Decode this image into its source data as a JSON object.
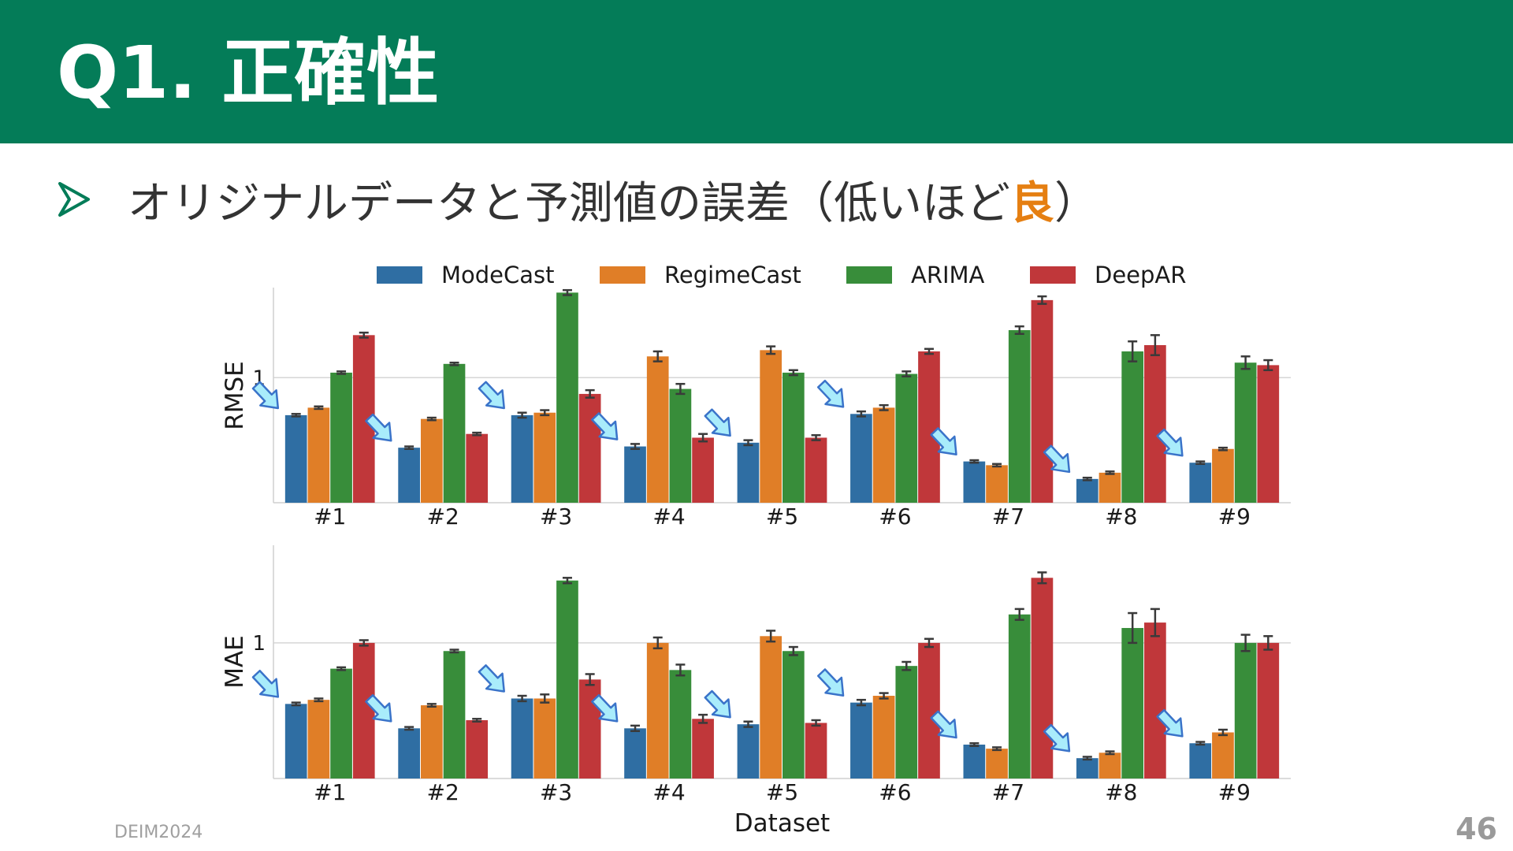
{
  "slide": {
    "title": "Q1. 正確性",
    "bullet_prefix": "オリジナルデータと予測値の誤差",
    "bullet_open": "（低いほど",
    "bullet_emphasis": "良",
    "bullet_close": "）",
    "footer": "DEIM2024",
    "page_number": "46",
    "header_color": "#047c58",
    "emphasis_color": "#e57f12"
  },
  "chart_data": [
    {
      "type": "bar",
      "panel": "top",
      "ylabel": "RMSE",
      "yticks": [
        1
      ],
      "ylim": [
        0,
        1.72
      ],
      "categories": [
        "#1",
        "#2",
        "#3",
        "#4",
        "#5",
        "#6",
        "#7",
        "#8",
        "#9"
      ],
      "xlabel": "",
      "series": [
        {
          "name": "ModeCast",
          "color": "#2f6ea3",
          "values": [
            0.7,
            0.44,
            0.7,
            0.45,
            0.48,
            0.71,
            0.33,
            0.19,
            0.32
          ],
          "errors": [
            0.01,
            0.01,
            0.02,
            0.02,
            0.02,
            0.02,
            0.01,
            0.01,
            0.01
          ]
        },
        {
          "name": "RegimeCast",
          "color": "#e07e27",
          "values": [
            0.76,
            0.67,
            0.72,
            1.17,
            1.22,
            0.76,
            0.3,
            0.24,
            0.43
          ],
          "errors": [
            0.01,
            0.01,
            0.02,
            0.04,
            0.03,
            0.02,
            0.01,
            0.01,
            0.01
          ]
        },
        {
          "name": "ARIMA",
          "color": "#388d3a",
          "values": [
            1.04,
            1.11,
            1.68,
            0.91,
            1.04,
            1.03,
            1.38,
            1.21,
            1.12
          ],
          "errors": [
            0.01,
            0.01,
            0.02,
            0.04,
            0.02,
            0.02,
            0.03,
            0.08,
            0.05
          ]
        },
        {
          "name": "DeepAR",
          "color": "#c0373a",
          "values": [
            1.34,
            0.55,
            0.87,
            0.52,
            0.52,
            1.21,
            1.62,
            1.26,
            1.1
          ],
          "errors": [
            0.02,
            0.01,
            0.03,
            0.03,
            0.02,
            0.02,
            0.03,
            0.08,
            0.04
          ]
        }
      ]
    },
    {
      "type": "bar",
      "panel": "bottom",
      "ylabel": "MAE",
      "yticks": [
        1
      ],
      "ylim": [
        0,
        1.72
      ],
      "categories": [
        "#1",
        "#2",
        "#3",
        "#4",
        "#5",
        "#6",
        "#7",
        "#8",
        "#9"
      ],
      "xlabel": "Dataset",
      "series": [
        {
          "name": "ModeCast",
          "color": "#2f6ea3",
          "values": [
            0.55,
            0.37,
            0.59,
            0.37,
            0.4,
            0.56,
            0.25,
            0.15,
            0.26
          ],
          "errors": [
            0.01,
            0.01,
            0.02,
            0.02,
            0.02,
            0.02,
            0.01,
            0.01,
            0.01
          ]
        },
        {
          "name": "RegimeCast",
          "color": "#e07e27",
          "values": [
            0.58,
            0.54,
            0.59,
            1.0,
            1.05,
            0.61,
            0.22,
            0.19,
            0.34
          ],
          "errors": [
            0.01,
            0.01,
            0.03,
            0.04,
            0.04,
            0.02,
            0.01,
            0.01,
            0.02
          ]
        },
        {
          "name": "ARIMA",
          "color": "#388d3a",
          "values": [
            0.81,
            0.94,
            1.46,
            0.8,
            0.94,
            0.83,
            1.21,
            1.11,
            1.0
          ],
          "errors": [
            0.01,
            0.01,
            0.02,
            0.04,
            0.03,
            0.03,
            0.04,
            0.11,
            0.06
          ]
        },
        {
          "name": "DeepAR",
          "color": "#c0373a",
          "values": [
            1.0,
            0.43,
            0.73,
            0.44,
            0.41,
            1.0,
            1.48,
            1.15,
            1.0
          ],
          "errors": [
            0.02,
            0.01,
            0.04,
            0.03,
            0.02,
            0.03,
            0.04,
            0.1,
            0.05
          ]
        }
      ]
    }
  ]
}
